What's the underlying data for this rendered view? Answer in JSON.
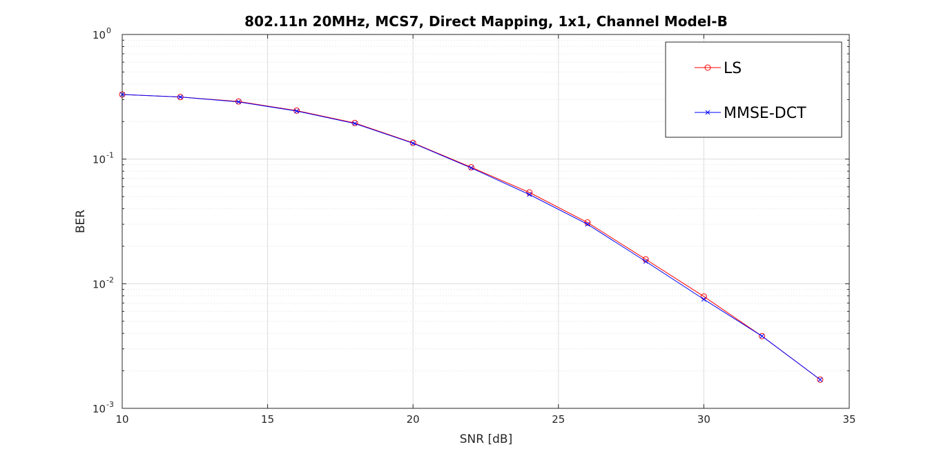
{
  "chart_data": {
    "type": "line",
    "title": "802.11n 20MHz, MCS7, Direct Mapping, 1x1, Channel Model-B",
    "xlabel": "SNR [dB]",
    "ylabel": "BER",
    "xlim": [
      10,
      35
    ],
    "ylim": [
      0.001,
      1
    ],
    "yscale": "log",
    "grid": true,
    "minor_grid": true,
    "legend_position": "top-right",
    "x_ticks": [
      10,
      15,
      20,
      25,
      30,
      35
    ],
    "x_tick_labels": [
      "10",
      "15",
      "20",
      "25",
      "30",
      "35"
    ],
    "y_ticks": [
      0.001,
      0.01,
      0.1,
      1
    ],
    "y_tick_labels": [
      {
        "base": "10",
        "exp": "-3"
      },
      {
        "base": "10",
        "exp": "-2"
      },
      {
        "base": "10",
        "exp": "-1"
      },
      {
        "base": "10",
        "exp": "0"
      }
    ],
    "x": [
      10,
      12,
      14,
      16,
      18,
      20,
      22,
      24,
      26,
      28,
      30,
      32,
      34
    ],
    "series": [
      {
        "name": "LS",
        "color": "#ff0000",
        "marker": "circle",
        "values": [
          0.33,
          0.315,
          0.29,
          0.245,
          0.195,
          0.135,
          0.086,
          0.054,
          0.031,
          0.0157,
          0.0079,
          0.0038,
          0.0017
        ]
      },
      {
        "name": "MMSE-DCT",
        "color": "#0000ff",
        "marker": "x",
        "values": [
          0.33,
          0.315,
          0.288,
          0.243,
          0.193,
          0.134,
          0.085,
          0.052,
          0.03,
          0.0151,
          0.0075,
          0.0038,
          0.0017
        ]
      }
    ]
  }
}
